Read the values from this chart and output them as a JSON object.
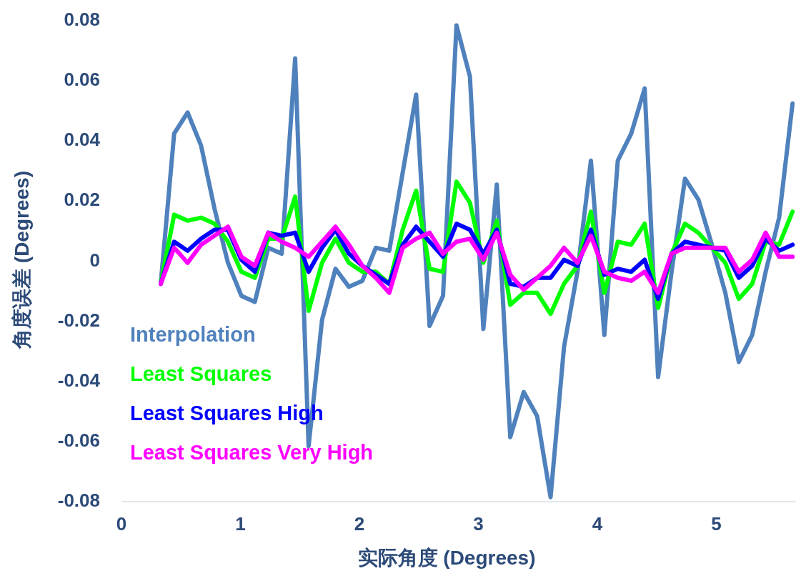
{
  "chart_data": {
    "type": "line",
    "xlabel": "实际角度 (Degrees)",
    "ylabel": "角度误差 (Degrees)",
    "x": [
      0.33,
      0.443,
      0.556,
      0.669,
      0.782,
      0.895,
      1.008,
      1.121,
      1.234,
      1.347,
      1.46,
      1.573,
      1.686,
      1.799,
      1.912,
      2.025,
      2.138,
      2.251,
      2.364,
      2.477,
      2.59,
      2.703,
      2.816,
      2.929,
      3.042,
      3.155,
      3.268,
      3.381,
      3.494,
      3.607,
      3.72,
      3.833,
      3.946,
      4.059,
      4.172,
      4.285,
      4.398,
      4.511,
      4.624,
      4.737,
      4.85,
      4.963,
      5.076,
      5.189,
      5.302,
      5.415,
      5.528,
      5.641
    ],
    "series": [
      {
        "name": "Interpolation",
        "color": "#4f81bd",
        "values": [
          -0.008,
          0.042,
          0.049,
          0.038,
          0.017,
          -0.001,
          -0.012,
          -0.014,
          0.004,
          0.002,
          0.067,
          -0.062,
          -0.02,
          -0.003,
          -0.009,
          -0.007,
          0.004,
          0.003,
          0.029,
          0.055,
          -0.022,
          -0.012,
          0.078,
          0.061,
          -0.023,
          0.025,
          -0.059,
          -0.044,
          -0.052,
          -0.079,
          -0.029,
          -0.004,
          0.033,
          -0.025,
          0.033,
          0.042,
          0.057,
          -0.039,
          -0.004,
          0.027,
          0.02,
          0.005,
          -0.011,
          -0.034,
          -0.025,
          -0.004,
          0.014,
          0.052
        ]
      },
      {
        "name": "Least Squares",
        "color": "#00ff00",
        "values": [
          -0.008,
          0.015,
          0.013,
          0.014,
          0.012,
          0.006,
          -0.004,
          -0.006,
          0.007,
          0.007,
          0.021,
          -0.017,
          -0.001,
          0.007,
          -0.001,
          -0.004,
          -0.004,
          -0.008,
          0.01,
          0.023,
          -0.003,
          -0.004,
          0.026,
          0.019,
          -0.001,
          0.013,
          -0.015,
          -0.011,
          -0.011,
          -0.018,
          -0.008,
          -0.002,
          0.016,
          -0.011,
          0.006,
          0.005,
          0.012,
          -0.016,
          0.002,
          0.012,
          0.009,
          0.004,
          -0.001,
          -0.013,
          -0.008,
          0.006,
          0.005,
          0.016
        ]
      },
      {
        "name": "Least Squares High",
        "color": "#0000ff",
        "values": [
          -0.008,
          0.006,
          0.003,
          0.007,
          0.01,
          0.01,
          0.0,
          -0.004,
          0.009,
          0.008,
          0.009,
          -0.004,
          0.004,
          0.01,
          0.002,
          -0.002,
          -0.005,
          -0.008,
          0.005,
          0.011,
          0.006,
          0.001,
          0.012,
          0.01,
          0.002,
          0.01,
          -0.008,
          -0.009,
          -0.006,
          -0.006,
          0.0,
          -0.002,
          0.01,
          -0.005,
          -0.003,
          -0.004,
          0.0,
          -0.013,
          0.002,
          0.006,
          0.005,
          0.004,
          0.003,
          -0.006,
          -0.002,
          0.007,
          0.003,
          0.005
        ]
      },
      {
        "name": "Least Squares Very High",
        "color": "#ff00ff",
        "values": [
          -0.008,
          0.004,
          -0.001,
          0.005,
          0.008,
          0.011,
          0.001,
          -0.002,
          0.009,
          0.006,
          0.004,
          0.001,
          0.006,
          0.011,
          0.005,
          -0.002,
          -0.006,
          -0.011,
          0.004,
          0.007,
          0.009,
          0.002,
          0.006,
          0.007,
          0.0,
          0.009,
          -0.005,
          -0.01,
          -0.006,
          -0.002,
          0.004,
          -0.001,
          0.008,
          -0.004,
          -0.006,
          -0.007,
          -0.004,
          -0.011,
          0.002,
          0.004,
          0.004,
          0.004,
          0.004,
          -0.004,
          0.0,
          0.009,
          0.001,
          0.001
        ]
      }
    ],
    "xlim": [
      0,
      5.67
    ],
    "ylim": [
      -0.08,
      0.08
    ],
    "xticks": [
      0,
      1,
      2,
      3,
      4,
      5
    ],
    "yticks": [
      -0.08,
      -0.06,
      -0.04,
      -0.02,
      0,
      0.02,
      0.04,
      0.06,
      0.08
    ],
    "legend": "bottom left"
  }
}
